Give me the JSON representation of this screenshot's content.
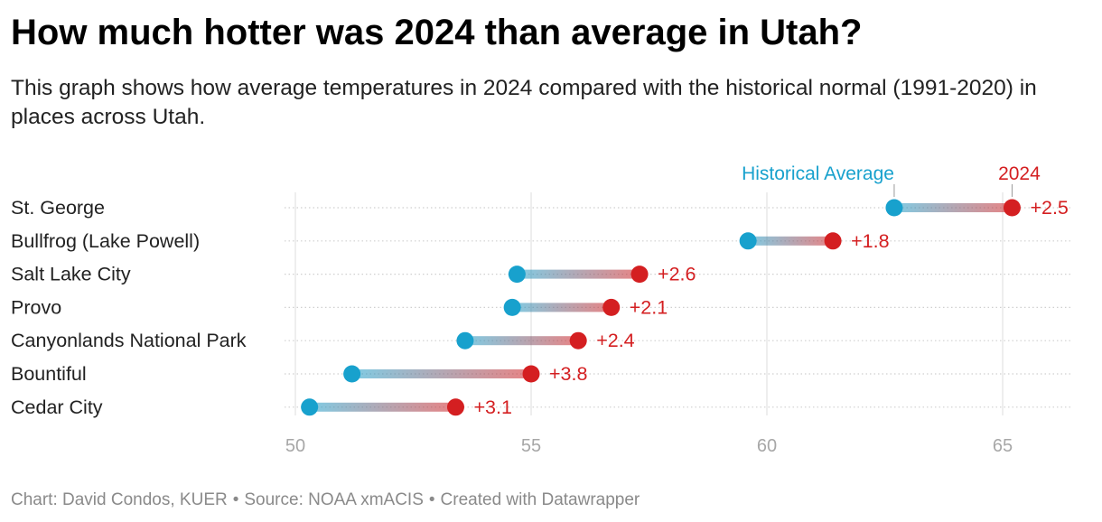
{
  "header": {
    "title": "How much hotter was 2024 than average in Utah?",
    "subtitle": "This graph shows how average temperatures in 2024 compared with the historical normal (1991-2020) in places across Utah."
  },
  "footer": {
    "chart_credit": "Chart: David Condos, KUER",
    "source": "Source: NOAA xmACIS",
    "tool": "Created with Datawrapper",
    "separator": "•"
  },
  "colors": {
    "historical": "#18a1cd",
    "year2024": "#d41f21",
    "grid": "#e2e2e2",
    "tick_text": "#a7a7a7",
    "label_text": "#222222"
  },
  "chart_data": {
    "type": "range_dot",
    "legend": {
      "start_label": "Historical Average",
      "end_label": "2024"
    },
    "categories": [
      "St. George",
      "Bullfrog (Lake Powell)",
      "Salt Lake City",
      "Provo",
      "Canyonlands National Park",
      "Bountiful",
      "Cedar City"
    ],
    "series": [
      {
        "name": "Historical Average",
        "values": [
          62.7,
          59.6,
          54.7,
          54.6,
          53.6,
          51.2,
          50.3
        ]
      },
      {
        "name": "2024",
        "values": [
          65.2,
          61.4,
          57.3,
          56.7,
          56.0,
          55.0,
          53.4
        ]
      }
    ],
    "difference_labels": [
      "+2.5",
      "+1.8",
      "+2.6",
      "+2.1",
      "+2.4",
      "+3.8",
      "+3.1"
    ],
    "x_ticks": [
      50,
      55,
      60,
      65
    ],
    "xlim": [
      50,
      66.5
    ],
    "grid": true
  }
}
